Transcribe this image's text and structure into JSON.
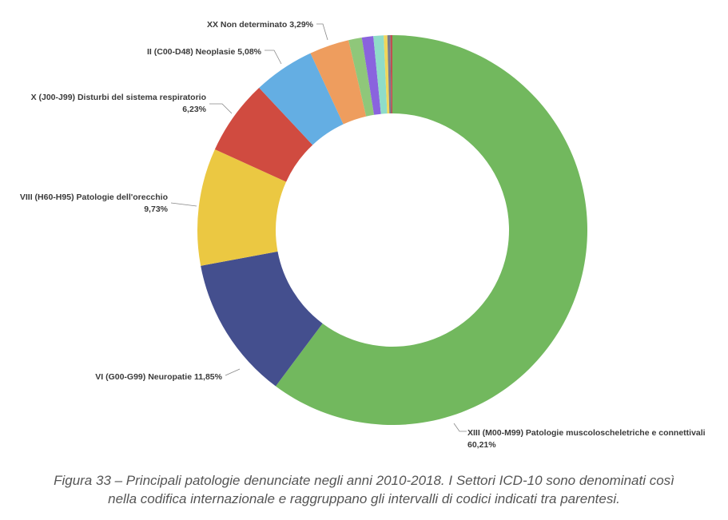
{
  "chart_data": {
    "type": "pie",
    "variant": "donut",
    "slices": [
      {
        "name": "XIII (M00-M99) Patologie muscoloscheletriche e connettivali",
        "value": 60.21,
        "label": "60,21%",
        "color": "#72b85e"
      },
      {
        "name": "VI (G00-G99) Neuropatie",
        "value": 11.85,
        "label": "11,85%",
        "color": "#444f8e"
      },
      {
        "name": "VIII (H60-H95) Patologie dell'orecchio",
        "value": 9.73,
        "label": "9,73%",
        "color": "#ebc842"
      },
      {
        "name": "X (J00-J99) Disturbi del sistema respiratorio",
        "value": 6.23,
        "label": "6,23%",
        "color": "#d04b40"
      },
      {
        "name": "II (C00-D48) Neoplasie",
        "value": 5.08,
        "label": "5,08%",
        "color": "#64aee3"
      },
      {
        "name": "XX Non determinato",
        "value": 3.29,
        "label": "3,29%",
        "color": "#ee9d5e"
      },
      {
        "value": 1.1,
        "color": "#8fc77a"
      },
      {
        "value": 0.95,
        "color": "#8a63de"
      },
      {
        "value": 0.85,
        "color": "#8fdcc8"
      },
      {
        "value": 0.3,
        "color": "#f0d65a"
      },
      {
        "value": 0.25,
        "color": "#7a7a8a"
      },
      {
        "value": 0.16,
        "color": "#c05050"
      }
    ]
  },
  "caption": {
    "line1": "Figura 33 – Principali patologie denunciate negli anni 2010-2018. I Settori ICD-10 sono denominati così",
    "line2": "nella codifica internazionale e raggruppano gli intervalli di codici indicati tra parentesi."
  }
}
